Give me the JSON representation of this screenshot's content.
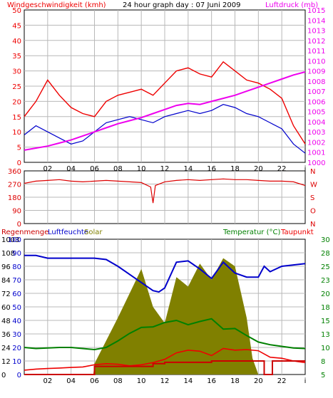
{
  "colors": {
    "wind_max": "#ee0000",
    "wind_avg": "#0000cc",
    "pressure": "#ee00ee",
    "direction": "#dd0000",
    "rain": "#cc0000",
    "humidity": "#0000cc",
    "solar": "#808000",
    "temperature": "#008000",
    "dewpoint": "#ee0000",
    "grid": "#b8b8b8",
    "frame": "#000000"
  },
  "chart_data": [
    {
      "type": "line",
      "title": "24 hour graph day : 07 Juni 2009",
      "left_axis_label": "Windgeschwindigkeit (kmh)",
      "right_axis_label": "Luftdruck (mb)",
      "left_ticks": [
        "0",
        "5",
        "10",
        "15",
        "20",
        "25",
        "30",
        "35",
        "40",
        "45",
        "50"
      ],
      "right_ticks": [
        "1000",
        "1001",
        "1002",
        "1003",
        "1004",
        "1005",
        "1006",
        "1007",
        "1008",
        "1009",
        "1010",
        "1011",
        "1012",
        "1013",
        "1014",
        "1015"
      ],
      "x_ticks": [
        "02",
        "04",
        "06",
        "08",
        "10",
        "12",
        "14",
        "16",
        "18",
        "20",
        "22",
        "i"
      ],
      "ylim_left": [
        0,
        50
      ],
      "ylim_right": [
        1000,
        1015
      ],
      "xlim": [
        0,
        24
      ],
      "grid": true,
      "series": [
        {
          "axis": "left",
          "x": [
            0,
            1,
            2,
            3,
            4,
            5,
            6,
            7,
            8,
            9,
            10,
            11,
            12,
            13,
            14,
            15,
            16,
            17,
            18,
            19,
            20,
            21,
            22,
            23,
            24
          ],
          "y": [
            15,
            20,
            27,
            22,
            18,
            16,
            15,
            20,
            22,
            23,
            24,
            22,
            26,
            30,
            31,
            29,
            28,
            33,
            30,
            27,
            26,
            24,
            21,
            12,
            6
          ]
        },
        {
          "axis": "left",
          "x": [
            0,
            1,
            2,
            3,
            4,
            5,
            6,
            7,
            8,
            9,
            10,
            11,
            12,
            13,
            14,
            15,
            16,
            17,
            18,
            19,
            20,
            21,
            22,
            23,
            24
          ],
          "y": [
            9,
            12,
            10,
            8,
            6,
            7,
            10,
            13,
            14,
            15,
            14,
            13,
            15,
            16,
            17,
            16,
            17,
            19,
            18,
            16,
            15,
            13,
            11,
            6,
            3
          ]
        },
        {
          "axis": "right",
          "x": [
            0,
            1,
            2,
            3,
            4,
            5,
            6,
            7,
            8,
            9,
            10,
            11,
            12,
            13,
            14,
            15,
            16,
            17,
            18,
            19,
            20,
            21,
            22,
            23,
            24
          ],
          "y": [
            1001.2,
            1001.4,
            1001.6,
            1001.9,
            1002.2,
            1002.6,
            1003.0,
            1003.4,
            1003.8,
            1004.1,
            1004.4,
            1004.8,
            1005.2,
            1005.6,
            1005.8,
            1005.7,
            1006.0,
            1006.3,
            1006.6,
            1007.0,
            1007.4,
            1007.8,
            1008.2,
            1008.6,
            1008.9
          ]
        }
      ]
    },
    {
      "type": "line",
      "left_ticks": [
        "0",
        "90",
        "180",
        "270",
        "360"
      ],
      "right_ticks": [
        "N",
        "O",
        "S",
        "W",
        "N"
      ],
      "ylim": [
        0,
        360
      ],
      "xlim": [
        0,
        24
      ],
      "grid": true,
      "series": [
        {
          "x": [
            0,
            1,
            2,
            3,
            4,
            5,
            6,
            7,
            8,
            9,
            10,
            10.8,
            11,
            11.2,
            12,
            13,
            14,
            15,
            16,
            17,
            18,
            19,
            20,
            21,
            22,
            23,
            24
          ],
          "y": [
            275,
            290,
            295,
            300,
            290,
            285,
            290,
            295,
            290,
            285,
            280,
            250,
            140,
            260,
            285,
            295,
            300,
            295,
            300,
            305,
            300,
            300,
            295,
            290,
            290,
            285,
            260
          ]
        }
      ]
    },
    {
      "type": "line",
      "labels": {
        "rain": "Regenmenge",
        "humidity": "Luftfeuchte",
        "solar": "Solar",
        "temperature": "Temperatur (°C)",
        "dewpoint": "Taupunkt"
      },
      "left_ticks_1": [
        "0",
        "12",
        "24",
        "36",
        "48",
        "60",
        "72",
        "84",
        "96",
        "108",
        "1003"
      ],
      "left_ticks_2": [
        "0",
        "10",
        "20",
        "30",
        "40",
        "50",
        "60",
        "70",
        "80",
        "90",
        "100"
      ],
      "right_ticks": [
        "5",
        "8",
        "10",
        "13",
        "15",
        "18",
        "20",
        "23",
        "25",
        "28",
        "30"
      ],
      "xlim": [
        0,
        24
      ],
      "ylim_humidity": [
        0,
        100
      ],
      "ylim_solar": [
        0,
        1000
      ],
      "ylim_temperature": [
        5,
        30
      ],
      "grid": true,
      "series": [
        {
          "key": "solar",
          "x": [
            0,
            5.9,
            6,
            7,
            8,
            9,
            10,
            11,
            12,
            13,
            14,
            15,
            16,
            17,
            18,
            19,
            19.5,
            20,
            24
          ],
          "y": [
            0,
            0,
            80,
            250,
            420,
            600,
            780,
            500,
            380,
            720,
            650,
            820,
            700,
            860,
            800,
            420,
            120,
            0,
            0
          ]
        },
        {
          "key": "humidity",
          "x": [
            0,
            1,
            2,
            3,
            4,
            5,
            6,
            7,
            8,
            9,
            10,
            11,
            11.5,
            12,
            13,
            14,
            15,
            16,
            17,
            18,
            19,
            20,
            20.5,
            21,
            22,
            23,
            24
          ],
          "y": [
            88,
            88,
            86,
            86,
            86,
            86,
            86,
            85,
            80,
            74,
            68,
            62,
            61,
            64,
            83,
            84,
            78,
            71,
            83,
            75,
            72,
            72,
            80,
            76,
            80,
            81,
            82
          ]
        },
        {
          "key": "temperature",
          "x": [
            0,
            1,
            2,
            3,
            4,
            5,
            6,
            7,
            8,
            9,
            10,
            11,
            12,
            13,
            14,
            15,
            16,
            17,
            18,
            19,
            20,
            21,
            22,
            23,
            24
          ],
          "y": [
            10.0,
            9.8,
            9.9,
            10.0,
            10.0,
            9.8,
            9.6,
            10.0,
            11.2,
            12.6,
            13.7,
            13.8,
            14.6,
            15.0,
            14.2,
            14.8,
            15.3,
            13.4,
            13.5,
            12.2,
            11.0,
            10.5,
            10.2,
            9.9,
            9.8
          ]
        },
        {
          "key": "dewpoint",
          "x": [
            0,
            1,
            2,
            3,
            4,
            5,
            6,
            7,
            8,
            9,
            10,
            11,
            12,
            13,
            14,
            15,
            16,
            17,
            18,
            19,
            20,
            21,
            22,
            23,
            24
          ],
          "y": [
            5.8,
            6.0,
            6.1,
            6.2,
            6.3,
            6.4,
            6.8,
            7.0,
            6.9,
            6.6,
            6.8,
            7.2,
            7.8,
            9.0,
            9.5,
            9.3,
            8.5,
            9.8,
            9.5,
            9.6,
            9.4,
            8.2,
            8.0,
            7.5,
            7.2
          ]
        },
        {
          "key": "rain",
          "x": [
            0,
            6,
            6,
            11,
            11,
            12,
            12,
            16,
            16,
            20.5,
            20.5,
            21.2,
            21.2,
            24
          ],
          "y": [
            0,
            0,
            6,
            6,
            8,
            8,
            9,
            9,
            10,
            10,
            0,
            0,
            10,
            10
          ]
        }
      ]
    }
  ]
}
